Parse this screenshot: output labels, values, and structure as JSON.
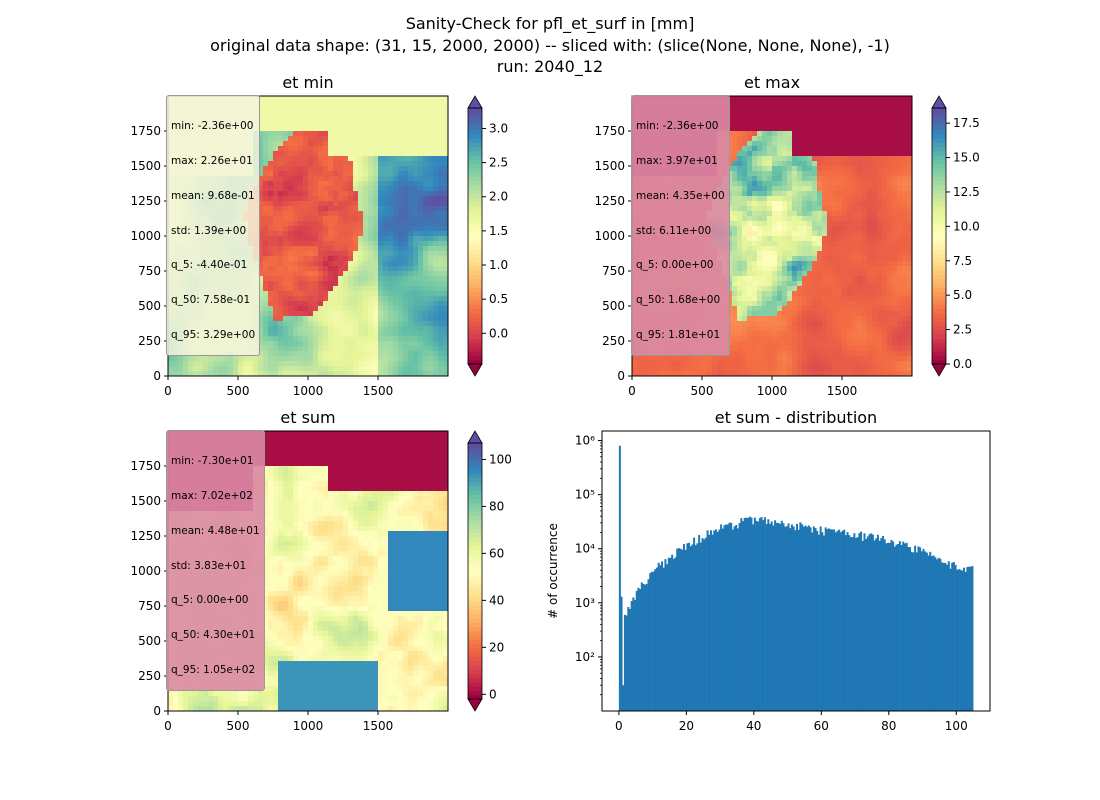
{
  "suptitle": {
    "line1": "Sanity-Check for pfl_et_surf in [mm]",
    "line2": "original data shape: (31, 15, 2000, 2000) -- sliced with: (slice(None, None, None), -1)",
    "line3": "run: 2040_12"
  },
  "colors": {
    "spectral": [
      "#9e0142",
      "#d53e4f",
      "#f46d43",
      "#fdae61",
      "#fee08b",
      "#ffffbf",
      "#e6f598",
      "#abdda4",
      "#66c2a5",
      "#3288bd",
      "#5e4fa2"
    ],
    "hist_bar": "#1f77b4",
    "stat_box_light": "#f5f5dc",
    "stat_box_pink": "#d98aa4"
  },
  "chart_data": [
    {
      "type": "heatmap",
      "title": "et min",
      "xlim": [
        0,
        2000
      ],
      "ylim": [
        0,
        2000
      ],
      "xticks": [
        "0",
        "500",
        "1000",
        "1500"
      ],
      "yticks": [
        "0",
        "250",
        "500",
        "750",
        "1000",
        "1250",
        "1500",
        "1750"
      ],
      "colorbar": {
        "min": -0.45,
        "max": 3.3,
        "ticks": [
          "0.0",
          "0.5",
          "1.0",
          "1.5",
          "2.0",
          "2.5",
          "3.0"
        ],
        "tick_values": [
          0,
          0.5,
          1.0,
          1.5,
          2.0,
          2.5,
          3.0
        ],
        "extend": "both"
      },
      "stats": [
        "min: -2.36e+00",
        "max: 2.26e+01",
        "mean: 9.68e-01",
        "std: 1.39e+00",
        "q_5: -4.40e-01",
        "q_50: 7.58e-01",
        "q_95: 3.29e+00"
      ]
    },
    {
      "type": "heatmap",
      "title": "et max",
      "xlim": [
        0,
        2000
      ],
      "ylim": [
        0,
        2000
      ],
      "xticks": [
        "0",
        "500",
        "1000",
        "1500"
      ],
      "yticks": [
        "0",
        "250",
        "500",
        "750",
        "1000",
        "1250",
        "1500",
        "1750"
      ],
      "colorbar": {
        "min": 0.0,
        "max": 18.6,
        "ticks": [
          "0.0",
          "2.5",
          "5.0",
          "7.5",
          "10.0",
          "12.5",
          "15.0",
          "17.5"
        ],
        "tick_values": [
          0,
          2.5,
          5.0,
          7.5,
          10.0,
          12.5,
          15.0,
          17.5
        ],
        "extend": "both"
      },
      "stats": [
        "min: -2.36e+00",
        "max: 3.97e+01",
        "mean: 4.35e+00",
        "std: 6.11e+00",
        "q_5: 0.00e+00",
        "q_50: 1.68e+00",
        "q_95: 1.81e+01"
      ]
    },
    {
      "type": "heatmap",
      "title": "et sum",
      "xlim": [
        0,
        2000
      ],
      "ylim": [
        0,
        2000
      ],
      "xticks": [
        "0",
        "500",
        "1000",
        "1500"
      ],
      "yticks": [
        "0",
        "250",
        "500",
        "750",
        "1000",
        "1250",
        "1500",
        "1750"
      ],
      "colorbar": {
        "min": -2,
        "max": 107,
        "ticks": [
          "0",
          "20",
          "40",
          "60",
          "80",
          "100"
        ],
        "tick_values": [
          0,
          20,
          40,
          60,
          80,
          100
        ],
        "extend": "both"
      },
      "stats": [
        "min: -7.30e+01",
        "max: 7.02e+02",
        "mean: 4.48e+01",
        "std: 3.83e+01",
        "q_5: 0.00e+00",
        "q_50: 4.30e+01",
        "q_95: 1.05e+02"
      ]
    },
    {
      "type": "bar",
      "title": "et sum - distribution",
      "ylabel": "# of occurrence",
      "yscale": "log",
      "xlim": [
        -5,
        110
      ],
      "ylim": [
        10,
        1500000
      ],
      "xticks": [
        0,
        20,
        40,
        60,
        80,
        100
      ],
      "yticks": [
        100,
        1000,
        10000,
        100000,
        1000000
      ],
      "ytick_labels": [
        "10²",
        "10³",
        "10⁴",
        "10⁵",
        "10⁶"
      ],
      "x": [
        0,
        0.5,
        1,
        1.5,
        5,
        10,
        20,
        30,
        40,
        50,
        60,
        70,
        80,
        90,
        100,
        104.5
      ],
      "values": [
        800000,
        1300,
        30,
        600,
        1500,
        4000,
        12000,
        25000,
        35000,
        28000,
        22000,
        18000,
        14000,
        9000,
        4500,
        4000
      ]
    }
  ]
}
